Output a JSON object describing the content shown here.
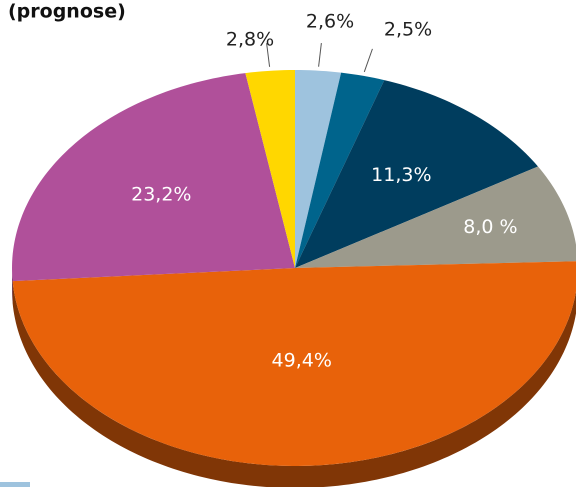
{
  "chart_data": {
    "type": "pie",
    "title": "(prognose)",
    "categories": [
      null,
      null,
      null,
      null,
      null,
      null,
      null
    ],
    "values": [
      2.6,
      2.5,
      11.3,
      8.0,
      49.4,
      23.2,
      2.8
    ],
    "value_labels": [
      "2,6%",
      "2,5%",
      "11,3%",
      "8,0 %",
      "49,4%",
      "23,2%",
      "2,8%"
    ],
    "colors": [
      "#9ec3de",
      "#00648c",
      "#003d5e",
      "#9c9a8c",
      "#e8620a",
      "#b0509a",
      "#ffd700"
    ]
  }
}
